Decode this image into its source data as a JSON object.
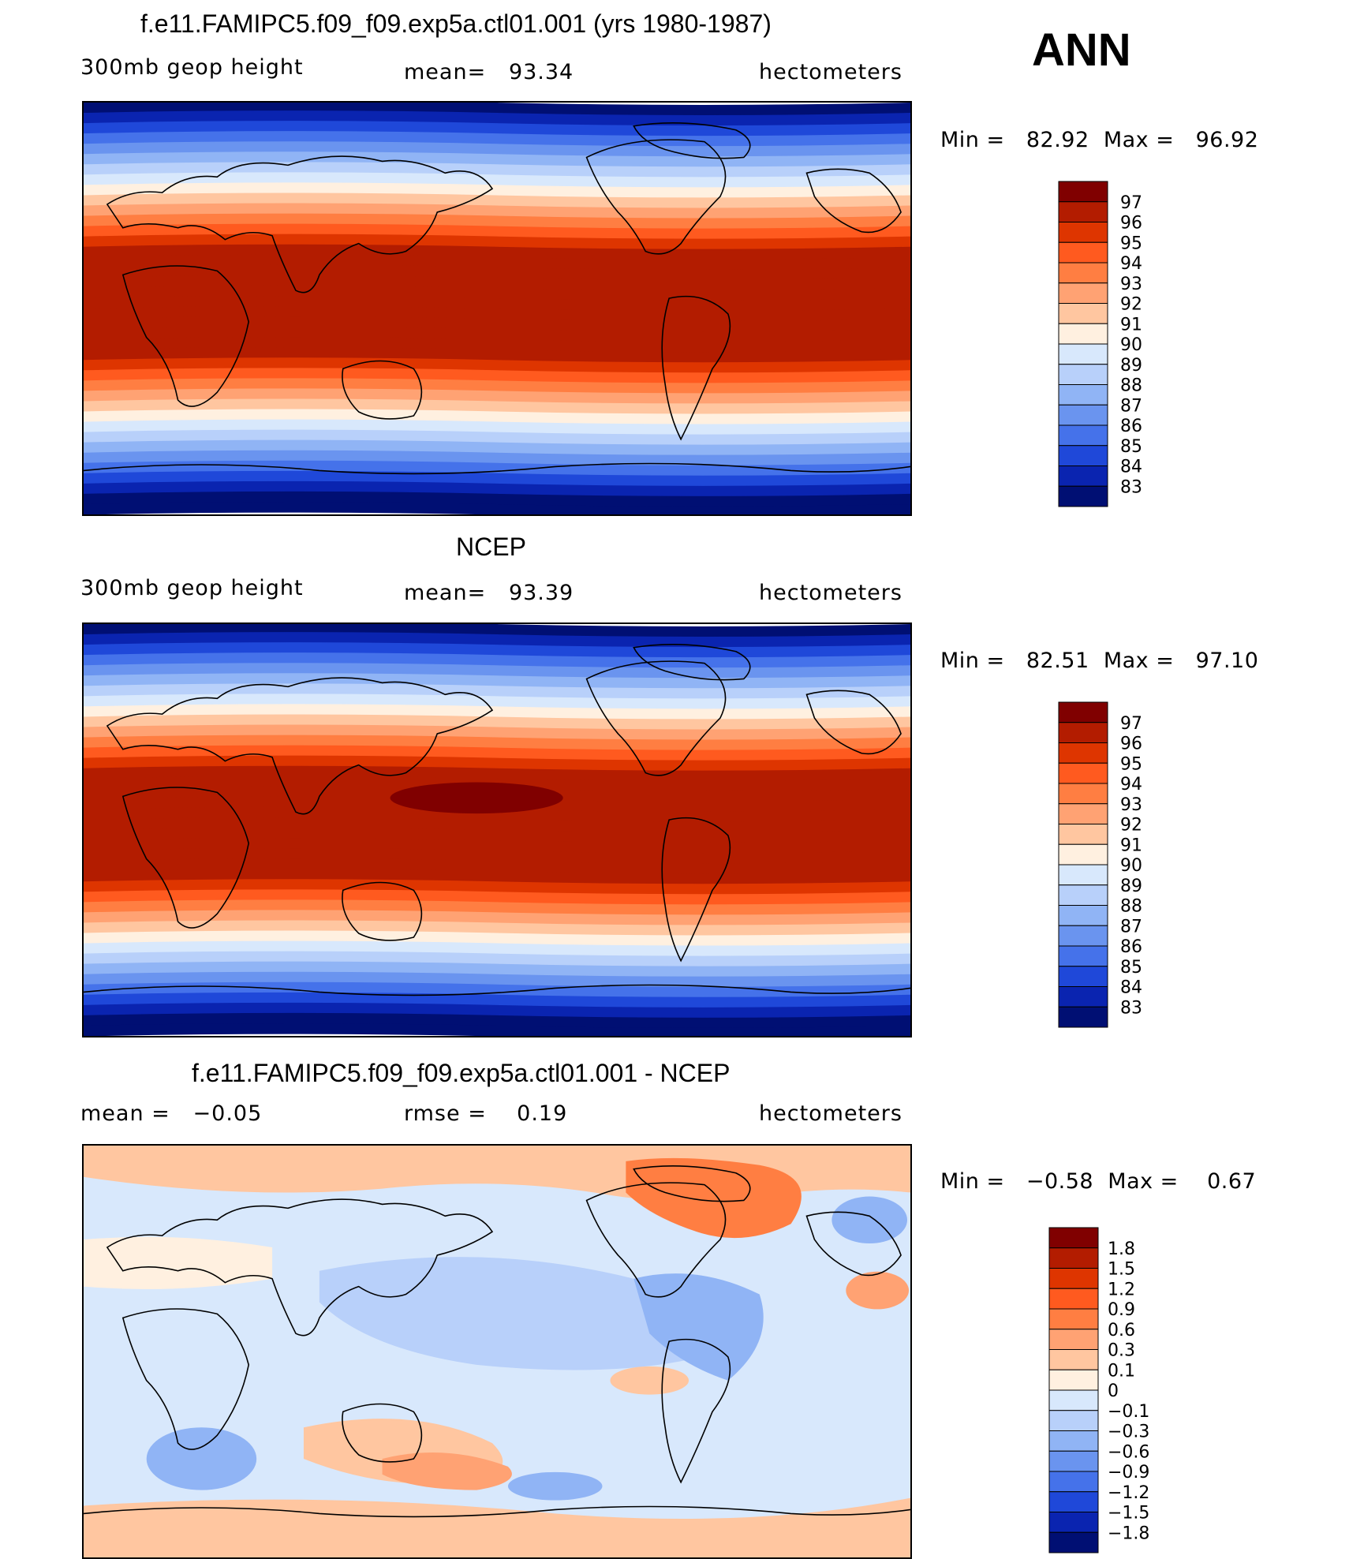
{
  "chart_data": [
    {
      "type": "heatmap",
      "title": "f.e11.FAMIPC5.f09_f09.exp5a.ctl01.001 (yrs 1980-1987)",
      "variable": "300mb geop height",
      "stat_text": "mean=   93.34",
      "units": "hectometers",
      "minmax": "Min =   82.92  Max =   96.92",
      "colorbar_labels": [
        "97",
        "96",
        "95",
        "94",
        "93",
        "92",
        "91",
        "90",
        "89",
        "88",
        "87",
        "86",
        "85",
        "84",
        "83"
      ],
      "colors": [
        "#800000",
        "#b31c00",
        "#de3500",
        "#ff5a1f",
        "#ff7e42",
        "#ffa273",
        "#ffc6a0",
        "#fff0e0",
        "#d8e8fc",
        "#b8d0fa",
        "#90b4f5",
        "#6a94ef",
        "#4572ea",
        "#1f48d9",
        "#0a24b0",
        "#000f73"
      ]
    },
    {
      "type": "heatmap",
      "title": "NCEP",
      "variable": "300mb geop height",
      "stat_text": "mean=   93.39",
      "units": "hectometers",
      "minmax": "Min =   82.51  Max =   97.10",
      "colorbar_labels": [
        "97",
        "96",
        "95",
        "94",
        "93",
        "92",
        "91",
        "90",
        "89",
        "88",
        "87",
        "86",
        "85",
        "84",
        "83"
      ],
      "colors": [
        "#800000",
        "#b31c00",
        "#de3500",
        "#ff5a1f",
        "#ff7e42",
        "#ffa273",
        "#ffc6a0",
        "#fff0e0",
        "#d8e8fc",
        "#b8d0fa",
        "#90b4f5",
        "#6a94ef",
        "#4572ea",
        "#1f48d9",
        "#0a24b0",
        "#000f73"
      ]
    },
    {
      "type": "heatmap",
      "title": "f.e11.FAMIPC5.f09_f09.exp5a.ctl01.001 - NCEP",
      "stat_text": "mean =   −0.05",
      "rmse_text": "rmse =    0.19",
      "units": "hectometers",
      "minmax": "Min =   −0.58  Max =    0.67",
      "colorbar_labels": [
        "1.8",
        "1.5",
        "1.2",
        "0.9",
        "0.6",
        "0.3",
        "0.1",
        "0",
        "−0.1",
        "−0.3",
        "−0.6",
        "−0.9",
        "−1.2",
        "−1.5",
        "−1.8"
      ],
      "colors": [
        "#800000",
        "#b31c00",
        "#de3500",
        "#ff5a1f",
        "#ff7e42",
        "#ffa273",
        "#ffc6a0",
        "#fff0e0",
        "#d8e8fc",
        "#b8d0fa",
        "#90b4f5",
        "#6a94ef",
        "#4572ea",
        "#1f48d9",
        "#0a24b0",
        "#000f73"
      ]
    }
  ],
  "season": "ANN"
}
